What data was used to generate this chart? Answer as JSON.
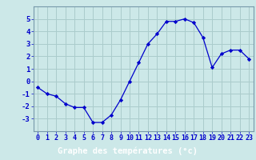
{
  "hours": [
    0,
    1,
    2,
    3,
    4,
    5,
    6,
    7,
    8,
    9,
    10,
    11,
    12,
    13,
    14,
    15,
    16,
    17,
    18,
    19,
    20,
    21,
    22,
    23
  ],
  "temps": [
    -0.5,
    -1.0,
    -1.2,
    -1.8,
    -2.1,
    -2.1,
    -3.3,
    -3.3,
    -2.7,
    -1.5,
    0.0,
    1.5,
    3.0,
    3.8,
    4.8,
    4.8,
    5.0,
    4.7,
    3.5,
    1.1,
    2.2,
    2.5,
    2.5,
    1.8
  ],
  "line_color": "#0000cc",
  "marker_color": "#0000cc",
  "bg_color": "#cce8e8",
  "grid_color": "#aacccc",
  "xlabel": "Graphe des températures (°c)",
  "xlabel_bar_color": "#0000aa",
  "xlabel_text_color": "#ffffff",
  "ylim": [
    -4,
    6
  ],
  "yticks": [
    -3,
    -2,
    -1,
    0,
    1,
    2,
    3,
    4,
    5
  ],
  "tick_label_color": "#0000cc",
  "tick_fontsize": 6.0,
  "ylabel_fontsize": 6.5
}
